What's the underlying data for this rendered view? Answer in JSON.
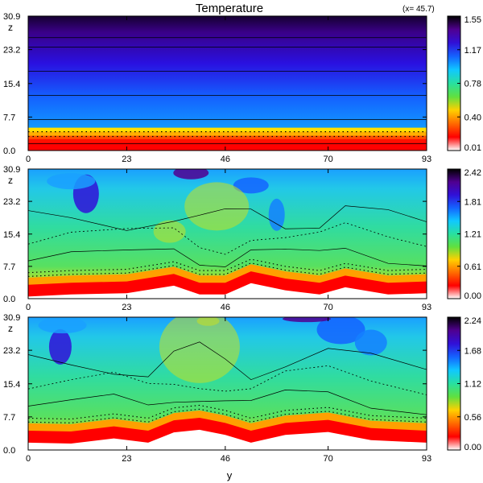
{
  "figure": {
    "title": "Temperature",
    "annotation": "(x= 45.7)",
    "xlabel": "y"
  },
  "colormap": [
    "#ffffff",
    "#ff0000",
    "#ff6a00",
    "#ffd000",
    "#60e040",
    "#28e0a0",
    "#10c8ff",
    "#1464ff",
    "#3010d8",
    "#500090",
    "#000000"
  ],
  "chart_data": [
    {
      "type": "heatmap",
      "title": "Temperature",
      "xlabel": "",
      "ylabel": "z",
      "xlim": [
        0,
        93
      ],
      "ylim": [
        0,
        30.9
      ],
      "xticks": [
        "0",
        "23",
        "46",
        "70",
        "93"
      ],
      "xtick_values": [
        0,
        23,
        46,
        70,
        93
      ],
      "yticks": [
        "0.0",
        "7.7",
        "15.4",
        "23.2",
        "30.9"
      ],
      "ytick_values": [
        0.0,
        7.7,
        15.4,
        23.2,
        30.9
      ],
      "colorbar_ticks": [
        "0.01",
        "0.40",
        "0.78",
        "1.17",
        "1.55"
      ],
      "colorbar_range": [
        0.01,
        1.55
      ]
    },
    {
      "type": "heatmap",
      "xlabel": "",
      "ylabel": "z",
      "xlim": [
        0,
        93
      ],
      "ylim": [
        0,
        30.9
      ],
      "xticks": [
        "0",
        "23",
        "46",
        "70",
        "93"
      ],
      "xtick_values": [
        0,
        23,
        46,
        70,
        93
      ],
      "yticks": [
        "0.0",
        "7.7",
        "15.4",
        "23.2",
        "30.9"
      ],
      "ytick_values": [
        0.0,
        7.7,
        15.4,
        23.2,
        30.9
      ],
      "colorbar_ticks": [
        "0.00",
        "0.61",
        "1.21",
        "1.81",
        "2.42"
      ],
      "colorbar_range": [
        0.0,
        2.42
      ]
    },
    {
      "type": "heatmap",
      "xlabel": "y",
      "ylabel": "z",
      "xlim": [
        0,
        93
      ],
      "ylim": [
        0,
        30.9
      ],
      "xticks": [
        "0",
        "23",
        "46",
        "70",
        "93"
      ],
      "xtick_values": [
        0,
        23,
        46,
        70,
        93
      ],
      "yticks": [
        "0.0",
        "7.7",
        "15.4",
        "23.2",
        "30.9"
      ],
      "ytick_values": [
        0.0,
        7.7,
        15.4,
        23.2,
        30.9
      ],
      "colorbar_ticks": [
        "0.00",
        "0.56",
        "1.12",
        "1.68",
        "2.24"
      ],
      "colorbar_range": [
        0.0,
        2.24
      ]
    }
  ]
}
